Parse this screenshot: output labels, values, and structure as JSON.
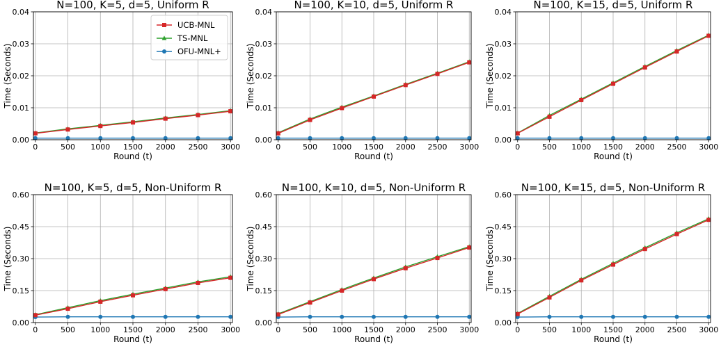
{
  "colors": {
    "ucb": "#d62728",
    "ts": "#2ca02c",
    "ofu": "#1f77b4",
    "grid": "#b0b0b0"
  },
  "chart_data": [
    {
      "type": "line",
      "title": "N=100, K=5, d=5, Uniform R",
      "xlabel": "Round (t)",
      "ylabel": "Time (Seconds)",
      "xlim": [
        0,
        3000
      ],
      "ylim": [
        0,
        0.04
      ],
      "xticks": [
        "0",
        "500",
        "1000",
        "1500",
        "2000",
        "2500",
        "3000"
      ],
      "yticks": [
        "0.00",
        "0.01",
        "0.02",
        "0.03",
        "0.04"
      ],
      "grid": true,
      "legend": "top-center",
      "x": [
        0,
        500,
        1000,
        1500,
        2000,
        2500,
        3000
      ],
      "series": [
        {
          "name": "UCB-MNL",
          "marker": "square",
          "values": [
            0.002,
            0.0032,
            0.0043,
            0.0054,
            0.0066,
            0.0077,
            0.0089
          ]
        },
        {
          "name": "TS-MNL",
          "marker": "triangle",
          "values": [
            0.0021,
            0.0034,
            0.0045,
            0.0056,
            0.0068,
            0.0079,
            0.0091
          ]
        },
        {
          "name": "OFU-MNL+",
          "marker": "circle",
          "values": [
            0.0005,
            0.0005,
            0.0005,
            0.0005,
            0.0005,
            0.0005,
            0.0005
          ]
        }
      ]
    },
    {
      "type": "line",
      "title": "N=100, K=10, d=5, Uniform R",
      "xlabel": "Round (t)",
      "ylabel": "Time (Seconds)",
      "xlim": [
        0,
        3000
      ],
      "ylim": [
        0,
        0.04
      ],
      "xticks": [
        "0",
        "500",
        "1000",
        "1500",
        "2000",
        "2500",
        "3000"
      ],
      "yticks": [
        "0.00",
        "0.01",
        "0.02",
        "0.03",
        "0.04"
      ],
      "grid": true,
      "legend": "none",
      "x": [
        0,
        500,
        1000,
        1500,
        2000,
        2500,
        3000
      ],
      "series": [
        {
          "name": "UCB-MNL",
          "marker": "square",
          "values": [
            0.002,
            0.0062,
            0.0099,
            0.0135,
            0.0171,
            0.0206,
            0.0242
          ]
        },
        {
          "name": "TS-MNL",
          "marker": "triangle",
          "values": [
            0.0022,
            0.0065,
            0.0102,
            0.0137,
            0.0173,
            0.0208,
            0.0244
          ]
        },
        {
          "name": "OFU-MNL+",
          "marker": "circle",
          "values": [
            0.0005,
            0.0005,
            0.0005,
            0.0005,
            0.0005,
            0.0005,
            0.0005
          ]
        }
      ]
    },
    {
      "type": "line",
      "title": "N=100, K=15, d=5, Uniform R",
      "xlabel": "Round (t)",
      "ylabel": "Time (Seconds)",
      "xlim": [
        0,
        3000
      ],
      "ylim": [
        0,
        0.04
      ],
      "xticks": [
        "0",
        "500",
        "1000",
        "1500",
        "2000",
        "2500",
        "3000"
      ],
      "yticks": [
        "0.00",
        "0.01",
        "0.02",
        "0.03",
        "0.04"
      ],
      "grid": true,
      "legend": "none",
      "x": [
        0,
        500,
        1000,
        1500,
        2000,
        2500,
        3000
      ],
      "series": [
        {
          "name": "UCB-MNL",
          "marker": "square",
          "values": [
            0.002,
            0.0072,
            0.0124,
            0.0175,
            0.0226,
            0.0276,
            0.0325
          ]
        },
        {
          "name": "TS-MNL",
          "marker": "triangle",
          "values": [
            0.0021,
            0.0076,
            0.0127,
            0.0178,
            0.0229,
            0.0279,
            0.0327
          ]
        },
        {
          "name": "OFU-MNL+",
          "marker": "circle",
          "values": [
            0.0005,
            0.0005,
            0.0005,
            0.0005,
            0.0005,
            0.0005,
            0.0005
          ]
        }
      ]
    },
    {
      "type": "line",
      "title": "N=100, K=5, d=5, Non-Uniform R",
      "xlabel": "Round (t)",
      "ylabel": "Time (Seconds)",
      "xlim": [
        0,
        3000
      ],
      "ylim": [
        0,
        0.6
      ],
      "xticks": [
        "0",
        "500",
        "1000",
        "1500",
        "2000",
        "2500",
        "3000"
      ],
      "yticks": [
        "0.00",
        "0.15",
        "0.30",
        "0.45",
        "0.60"
      ],
      "grid": true,
      "legend": "none",
      "x": [
        0,
        500,
        1000,
        1500,
        2000,
        2500,
        3000
      ],
      "series": [
        {
          "name": "UCB-MNL",
          "marker": "square",
          "values": [
            0.035,
            0.065,
            0.098,
            0.128,
            0.157,
            0.186,
            0.21
          ]
        },
        {
          "name": "TS-MNL",
          "marker": "triangle",
          "values": [
            0.037,
            0.07,
            0.103,
            0.133,
            0.162,
            0.191,
            0.215
          ]
        },
        {
          "name": "OFU-MNL+",
          "marker": "circle",
          "values": [
            0.026,
            0.027,
            0.027,
            0.027,
            0.027,
            0.027,
            0.027
          ]
        }
      ]
    },
    {
      "type": "line",
      "title": "N=100, K=10, d=5, Non-Uniform R",
      "xlabel": "Round (t)",
      "ylabel": "Time (Seconds)",
      "xlim": [
        0,
        3000
      ],
      "ylim": [
        0,
        0.6
      ],
      "xticks": [
        "0",
        "500",
        "1000",
        "1500",
        "2000",
        "2500",
        "3000"
      ],
      "yticks": [
        "0.00",
        "0.15",
        "0.30",
        "0.45",
        "0.60"
      ],
      "grid": true,
      "legend": "none",
      "x": [
        0,
        500,
        1000,
        1500,
        2000,
        2500,
        3000
      ],
      "series": [
        {
          "name": "UCB-MNL",
          "marker": "square",
          "values": [
            0.038,
            0.094,
            0.15,
            0.204,
            0.255,
            0.303,
            0.352
          ]
        },
        {
          "name": "TS-MNL",
          "marker": "triangle",
          "values": [
            0.041,
            0.098,
            0.155,
            0.209,
            0.261,
            0.309,
            0.356
          ]
        },
        {
          "name": "OFU-MNL+",
          "marker": "circle",
          "values": [
            0.026,
            0.027,
            0.027,
            0.027,
            0.027,
            0.027,
            0.027
          ]
        }
      ]
    },
    {
      "type": "line",
      "title": "N=100, K=15, d=5, Non-Uniform R",
      "xlabel": "Round (t)",
      "ylabel": "Time (Seconds)",
      "xlim": [
        0,
        3000
      ],
      "ylim": [
        0,
        0.6
      ],
      "xticks": [
        "0",
        "500",
        "1000",
        "1500",
        "2000",
        "2500",
        "3000"
      ],
      "yticks": [
        "0.00",
        "0.15",
        "0.30",
        "0.45",
        "0.60"
      ],
      "grid": true,
      "legend": "none",
      "x": [
        0,
        500,
        1000,
        1500,
        2000,
        2500,
        3000
      ],
      "series": [
        {
          "name": "UCB-MNL",
          "marker": "square",
          "values": [
            0.04,
            0.118,
            0.198,
            0.272,
            0.345,
            0.415,
            0.482
          ]
        },
        {
          "name": "TS-MNL",
          "marker": "triangle",
          "values": [
            0.043,
            0.123,
            0.203,
            0.278,
            0.351,
            0.421,
            0.487
          ]
        },
        {
          "name": "OFU-MNL+",
          "marker": "circle",
          "values": [
            0.026,
            0.027,
            0.027,
            0.027,
            0.027,
            0.027,
            0.027
          ]
        }
      ]
    }
  ]
}
